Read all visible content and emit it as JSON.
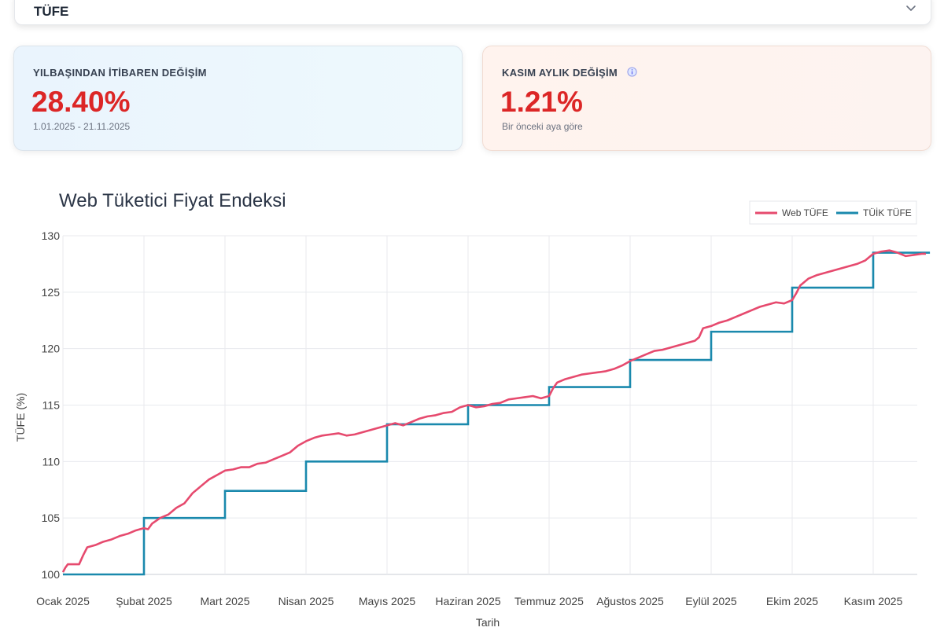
{
  "selector": {
    "label": "TÜFE"
  },
  "cards": {
    "ytd": {
      "title": "YILBAŞINDAN İTİBAREN DEĞİŞİM",
      "value": "28.40%",
      "range": "1.01.2025 - 21.11.2025"
    },
    "monthly": {
      "title": "KASIM AYLIK DEĞİŞİM",
      "value": "1.21%",
      "sub": "Bir önceki aya göre"
    }
  },
  "colors": {
    "web": "#e64a6e",
    "tuik": "#1a89ad",
    "accent_red": "#dc2626"
  },
  "chart_data": {
    "type": "line",
    "title": "Web Tüketici Fiyat Endeksi",
    "xlabel": "Tarih",
    "ylabel": "TÜFE (%)",
    "ylim": [
      100,
      130
    ],
    "yticks": [
      100,
      105,
      110,
      115,
      120,
      125,
      130
    ],
    "xlim": [
      0,
      10.7
    ],
    "grid": true,
    "legend_position": "top-right",
    "xtick_labels": [
      "Ocak 2025",
      "Şubat 2025",
      "Mart 2025",
      "Nisan 2025",
      "Mayıs 2025",
      "Haziran 2025",
      "Temmuz 2025",
      "Ağustos 2025",
      "Eylül 2025",
      "Ekim 2025",
      "Kasım 2025"
    ],
    "xtick_positions": [
      0,
      1,
      2,
      3,
      4,
      5,
      6,
      7,
      8,
      9,
      10
    ],
    "series": [
      {
        "name": "Web TÜFE",
        "kind": "line",
        "x": [
          0,
          0.03,
          0.06,
          0.15,
          0.2,
          0.25,
          0.3,
          0.4,
          0.5,
          0.6,
          0.7,
          0.8,
          0.9,
          0.95,
          1.0,
          1.05,
          1.1,
          1.2,
          1.3,
          1.4,
          1.5,
          1.6,
          1.7,
          1.8,
          1.9,
          2.0,
          2.1,
          2.2,
          2.3,
          2.4,
          2.5,
          2.6,
          2.7,
          2.8,
          2.9,
          3.0,
          3.1,
          3.2,
          3.3,
          3.4,
          3.5,
          3.6,
          3.7,
          3.8,
          3.9,
          4.0,
          4.1,
          4.2,
          4.3,
          4.4,
          4.5,
          4.6,
          4.7,
          4.8,
          4.9,
          5.0,
          5.1,
          5.2,
          5.3,
          5.4,
          5.5,
          5.6,
          5.7,
          5.8,
          5.9,
          6.0,
          6.05,
          6.1,
          6.2,
          6.3,
          6.4,
          6.5,
          6.6,
          6.7,
          6.8,
          6.9,
          7.0,
          7.1,
          7.2,
          7.3,
          7.4,
          7.5,
          7.6,
          7.7,
          7.8,
          7.85,
          7.9,
          8.0,
          8.1,
          8.2,
          8.3,
          8.4,
          8.5,
          8.6,
          8.7,
          8.8,
          8.9,
          9.0,
          9.05,
          9.1,
          9.2,
          9.3,
          9.4,
          9.5,
          9.6,
          9.7,
          9.8,
          9.9,
          10.0,
          10.1,
          10.2,
          10.3,
          10.4,
          10.5,
          10.6,
          10.65
        ],
        "y": [
          100.2,
          100.6,
          100.9,
          100.9,
          100.9,
          101.7,
          102.4,
          102.6,
          102.9,
          103.1,
          103.4,
          103.6,
          103.9,
          104.0,
          104.1,
          104.0,
          104.5,
          105.0,
          105.3,
          105.9,
          106.3,
          107.2,
          107.8,
          108.4,
          108.8,
          109.2,
          109.3,
          109.5,
          109.5,
          109.8,
          109.9,
          110.2,
          110.5,
          110.8,
          111.4,
          111.8,
          112.1,
          112.3,
          112.4,
          112.5,
          112.3,
          112.4,
          112.6,
          112.8,
          113.0,
          113.2,
          113.4,
          113.2,
          113.5,
          113.8,
          114.0,
          114.1,
          114.3,
          114.4,
          114.8,
          115.0,
          114.8,
          114.9,
          115.1,
          115.2,
          115.5,
          115.6,
          115.7,
          115.8,
          115.6,
          115.8,
          116.5,
          117.0,
          117.3,
          117.5,
          117.7,
          117.8,
          117.9,
          118.0,
          118.2,
          118.5,
          118.9,
          119.2,
          119.5,
          119.8,
          119.9,
          120.1,
          120.3,
          120.5,
          120.7,
          121.0,
          121.8,
          122.0,
          122.3,
          122.5,
          122.8,
          123.1,
          123.4,
          123.7,
          123.9,
          124.1,
          124.0,
          124.3,
          124.9,
          125.6,
          126.2,
          126.5,
          126.7,
          126.9,
          127.1,
          127.3,
          127.5,
          127.8,
          128.4,
          128.6,
          128.7,
          128.5,
          128.2,
          128.3,
          128.4,
          128.4
        ]
      },
      {
        "name": "TÜİK TÜFE",
        "kind": "step",
        "x": [
          0,
          1,
          2,
          3,
          4,
          5,
          6,
          7,
          8,
          9,
          10,
          10.7
        ],
        "y": [
          100.0,
          105.0,
          107.4,
          110.0,
          113.3,
          115.0,
          116.6,
          119.0,
          121.5,
          125.4,
          128.5,
          128.5
        ]
      }
    ]
  }
}
